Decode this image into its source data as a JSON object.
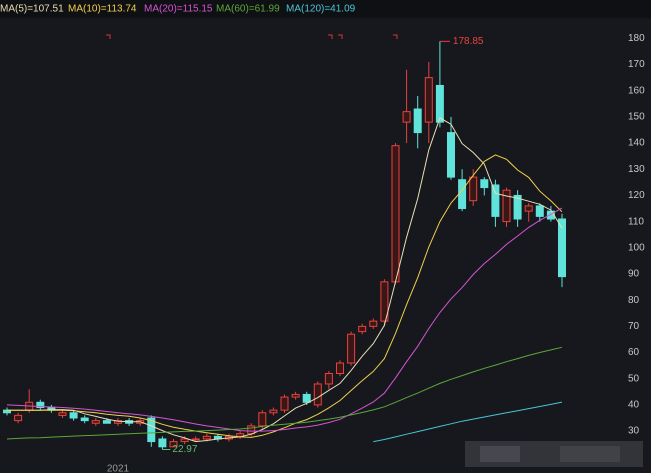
{
  "chart_data": {
    "type": "candlestick",
    "categories": [
      null,
      null,
      null,
      null,
      null,
      null,
      null,
      null,
      null,
      null,
      "2021",
      null,
      null,
      null,
      null,
      null,
      null,
      null,
      null,
      null,
      null,
      null,
      null,
      null,
      null,
      null,
      null,
      null,
      null,
      null,
      null,
      null,
      null,
      null,
      null,
      null,
      null,
      null,
      null,
      null,
      null,
      null,
      null,
      null,
      null,
      null,
      null,
      null,
      null,
      null,
      null
    ],
    "open": [
      38,
      34,
      38,
      41,
      39,
      36,
      37,
      35,
      33,
      34,
      33,
      34,
      33,
      35,
      27,
      24,
      26,
      27,
      27,
      28,
      27,
      28,
      29,
      32,
      37,
      38,
      43,
      44,
      40,
      48,
      52,
      56,
      68,
      70,
      72,
      87,
      148,
      153,
      148,
      162,
      144,
      126,
      118,
      126,
      124,
      110,
      120,
      114,
      116,
      114,
      111
    ],
    "high": [
      39,
      37,
      46,
      42,
      40,
      38,
      38,
      36,
      35,
      35,
      35,
      35,
      35,
      36,
      28,
      27,
      28,
      28,
      29,
      29,
      29,
      30,
      33,
      38,
      39,
      44,
      45,
      45,
      49,
      53,
      57,
      68,
      71,
      73,
      88,
      140,
      168,
      158,
      171,
      178.85,
      150,
      130,
      130,
      127,
      126,
      123,
      122,
      117,
      117,
      116,
      113
    ],
    "low": [
      36,
      33,
      37,
      38,
      37,
      35,
      34,
      33,
      32,
      33,
      32,
      32,
      32,
      24,
      22.97,
      24,
      25,
      26,
      26,
      26,
      26,
      27,
      28,
      31,
      36,
      37,
      42,
      40,
      39,
      46,
      51,
      55,
      67,
      69,
      70,
      86,
      140,
      138,
      140,
      146,
      126,
      114,
      116,
      120,
      108,
      108,
      108,
      110,
      110,
      110,
      85
    ],
    "close": [
      37,
      36,
      41,
      39,
      38,
      37,
      35,
      34,
      34,
      33,
      34,
      33,
      34,
      26,
      24,
      26,
      27,
      27,
      28,
      27,
      28,
      29,
      32,
      37,
      38,
      43,
      44,
      41,
      48,
      52,
      56,
      67,
      70,
      72,
      87,
      139,
      152,
      144,
      165,
      148,
      127,
      115,
      127,
      123,
      112,
      122,
      111,
      116,
      112,
      111,
      89
    ],
    "up_color": "#e8423c",
    "down_color": "#5fe3da",
    "series": [
      {
        "name": "MA(5)=107.51",
        "color": "#e8dfb4",
        "values": [
          38,
          38,
          38,
          38,
          38.2,
          38.2,
          38,
          36.6,
          35.6,
          34.6,
          33.8,
          33.6,
          33.6,
          32,
          30.2,
          28.6,
          27.4,
          26,
          26.4,
          27,
          27.4,
          27.8,
          28.8,
          30.6,
          32.8,
          35.8,
          38.8,
          40.6,
          42.8,
          45.6,
          48.2,
          53.2,
          58.6,
          63.4,
          70.4,
          87,
          104,
          118.8,
          137.4,
          149.6,
          147.2,
          139.8,
          136.4,
          132,
          120.8,
          119.8,
          119,
          117.8,
          116.6,
          114.4,
          107.51
        ]
      },
      {
        "name": "MA(10)=113.74",
        "color": "#f2cf4a",
        "values": [
          38,
          38,
          38,
          38,
          38,
          38,
          37.8,
          37.4,
          37,
          36.4,
          36,
          35.7,
          35,
          34,
          32.6,
          31.5,
          30.7,
          30,
          29.4,
          28.8,
          28.2,
          27.8,
          27.6,
          28.4,
          29.7,
          31.3,
          33,
          34.4,
          36.4,
          38.9,
          41.7,
          45.5,
          49.3,
          52.8,
          57.7,
          67.3,
          78.3,
          88.6,
          100.3,
          110,
          117.1,
          122,
          127.7,
          133,
          135.5,
          133.8,
          129.7,
          126.9,
          121.6,
          117.9,
          113.74
        ]
      },
      {
        "name": "MA(20)=115.15",
        "color": "#d455d4",
        "values": [
          40,
          39.8,
          39.6,
          39.4,
          39.2,
          39,
          38.7,
          38.4,
          38,
          37.5,
          37,
          36.6,
          36.2,
          35.6,
          35,
          34.3,
          33.5,
          32.7,
          32,
          31.4,
          30.8,
          30.2,
          30,
          30,
          30.2,
          30.6,
          31.2,
          31.6,
          32.3,
          33.3,
          34.5,
          36.6,
          38.8,
          41.1,
          44.5,
          50.3,
          56.5,
          62.4,
          69.2,
          75.3,
          80.5,
          84.8,
          89.8,
          94,
          97.5,
          101.3,
          104.5,
          107.8,
          110.5,
          112.8,
          115.15
        ]
      },
      {
        "name": "MA(60)=61.99",
        "color": "#5aa83a",
        "values": [
          27,
          27.2,
          27.4,
          27.5,
          27.7,
          27.9,
          28.1,
          28.3,
          28.4,
          28.6,
          28.8,
          29,
          29.2,
          29.3,
          29.5,
          29.7,
          29.9,
          30,
          30.2,
          30.4,
          30.6,
          30.8,
          31.2,
          31.8,
          32.2,
          32.6,
          33,
          33.4,
          34,
          34.6,
          35.3,
          36.2,
          37.1,
          38.1,
          39.3,
          41,
          42.8,
          44.5,
          46.4,
          48.2,
          49.8,
          51.2,
          52.6,
          54,
          55.2,
          56.5,
          57.7,
          58.9,
          60,
          61,
          61.99
        ]
      },
      {
        "name": "MA(120)=41.09",
        "color": "#4cc4d8",
        "values": [
          null,
          null,
          null,
          null,
          null,
          null,
          null,
          null,
          null,
          null,
          null,
          null,
          null,
          null,
          null,
          null,
          null,
          null,
          null,
          null,
          null,
          null,
          null,
          null,
          null,
          null,
          null,
          null,
          null,
          null,
          null,
          null,
          null,
          26,
          26.8,
          27.8,
          28.8,
          29.8,
          30.8,
          31.8,
          32.8,
          33.8,
          34.6,
          35.4,
          36.2,
          37,
          37.8,
          38.6,
          39.4,
          40.2,
          41.09
        ]
      }
    ],
    "ylim": [
      14,
      187
    ],
    "yticks": [
      30,
      40,
      50,
      60,
      70,
      80,
      90,
      100,
      110,
      120,
      130,
      140,
      150,
      160,
      170,
      180
    ],
    "grid": false
  }
}
